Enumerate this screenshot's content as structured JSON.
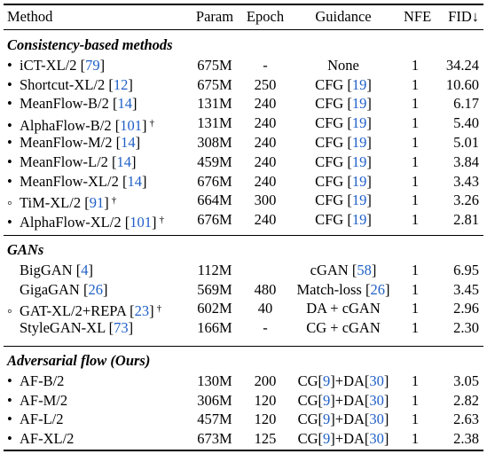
{
  "header": {
    "method": "Method",
    "param": "Param",
    "epoch": "Epoch",
    "guidance": "Guidance",
    "nfe": "NFE",
    "fid": "FID↓"
  },
  "sections": [
    {
      "title": "Consistency-based methods",
      "rows": [
        {
          "marker": "•",
          "name": "iCT-XL/2",
          "ref": "79",
          "dagger": "",
          "param": "675M",
          "epoch": "-",
          "g_pre": "None",
          "g_ref": "",
          "g_mid": "",
          "g_ref2": "",
          "g_post": "",
          "nfe": "1",
          "fid": "34.24"
        },
        {
          "marker": "•",
          "name": "Shortcut-XL/2",
          "ref": "12",
          "dagger": "",
          "param": "675M",
          "epoch": "250",
          "g_pre": "CFG ",
          "g_ref": "19",
          "g_mid": "",
          "g_ref2": "",
          "g_post": "",
          "nfe": "1",
          "fid": "10.60"
        },
        {
          "marker": "•",
          "name": "MeanFlow-B/2",
          "ref": "14",
          "dagger": "",
          "param": "131M",
          "epoch": "240",
          "g_pre": "CFG ",
          "g_ref": "19",
          "g_mid": "",
          "g_ref2": "",
          "g_post": "",
          "nfe": "1",
          "fid": "6.17"
        },
        {
          "marker": "•",
          "name": "AlphaFlow-B/2",
          "ref": "101",
          "dagger": "†",
          "param": "131M",
          "epoch": "240",
          "g_pre": "CFG ",
          "g_ref": "19",
          "g_mid": "",
          "g_ref2": "",
          "g_post": "",
          "nfe": "1",
          "fid": "5.40"
        },
        {
          "marker": "•",
          "name": "MeanFlow-M/2",
          "ref": "14",
          "dagger": "",
          "param": "308M",
          "epoch": "240",
          "g_pre": "CFG ",
          "g_ref": "19",
          "g_mid": "",
          "g_ref2": "",
          "g_post": "",
          "nfe": "1",
          "fid": "5.01"
        },
        {
          "marker": "•",
          "name": "MeanFlow-L/2",
          "ref": "14",
          "dagger": "",
          "param": "459M",
          "epoch": "240",
          "g_pre": "CFG ",
          "g_ref": "19",
          "g_mid": "",
          "g_ref2": "",
          "g_post": "",
          "nfe": "1",
          "fid": "3.84"
        },
        {
          "marker": "•",
          "name": "MeanFlow-XL/2",
          "ref": "14",
          "dagger": "",
          "param": "676M",
          "epoch": "240",
          "g_pre": "CFG ",
          "g_ref": "19",
          "g_mid": "",
          "g_ref2": "",
          "g_post": "",
          "nfe": "1",
          "fid": "3.43"
        },
        {
          "marker": "◦",
          "name": "TiM-XL/2",
          "ref": "91",
          "dagger": "†",
          "param": "664M",
          "epoch": "300",
          "g_pre": "CFG ",
          "g_ref": "19",
          "g_mid": "",
          "g_ref2": "",
          "g_post": "",
          "nfe": "1",
          "fid": "3.26"
        },
        {
          "marker": "•",
          "name": "AlphaFlow-XL/2",
          "ref": "101",
          "dagger": "†",
          "param": "676M",
          "epoch": "240",
          "g_pre": "CFG ",
          "g_ref": "19",
          "g_mid": "",
          "g_ref2": "",
          "g_post": "",
          "nfe": "1",
          "fid": "2.81"
        }
      ]
    },
    {
      "title": "GANs",
      "rows": [
        {
          "marker": "",
          "name": "BigGAN",
          "ref": "4",
          "dagger": "",
          "param": "112M",
          "epoch": "",
          "g_pre": "cGAN ",
          "g_ref": "58",
          "g_mid": "",
          "g_ref2": "",
          "g_post": "",
          "nfe": "1",
          "fid": "6.95"
        },
        {
          "marker": "",
          "name": "GigaGAN",
          "ref": "26",
          "dagger": "",
          "param": "569M",
          "epoch": "480",
          "g_pre": "Match-loss ",
          "g_ref": "26",
          "g_mid": "",
          "g_ref2": "",
          "g_post": "",
          "nfe": "1",
          "fid": "3.45"
        },
        {
          "marker": "◦",
          "name": "GAT-XL/2+REPA",
          "ref": "23",
          "dagger": "†",
          "param": "602M",
          "epoch": "40",
          "g_pre": "DA + cGAN",
          "g_ref": "",
          "g_mid": "",
          "g_ref2": "",
          "g_post": "",
          "nfe": "1",
          "fid": "2.96"
        },
        {
          "marker": "",
          "name": "StyleGAN-XL",
          "ref": "73",
          "dagger": "",
          "param": "166M",
          "epoch": "-",
          "g_pre": "CG + cGAN",
          "g_ref": "",
          "g_mid": "",
          "g_ref2": "",
          "g_post": "",
          "nfe": "1",
          "fid": "2.30"
        }
      ]
    },
    {
      "title": "Adversarial flow (Ours)",
      "rows": [
        {
          "marker": "•",
          "name": "AF-B/2",
          "ref": "",
          "dagger": "",
          "param": "130M",
          "epoch": "200",
          "g_pre": "CG[",
          "g_ref": "9",
          "g_mid": "]+DA[",
          "g_ref2": "30",
          "g_post": "]",
          "nfe": "1",
          "fid": "3.05"
        },
        {
          "marker": "•",
          "name": "AF-M/2",
          "ref": "",
          "dagger": "",
          "param": "306M",
          "epoch": "120",
          "g_pre": "CG[",
          "g_ref": "9",
          "g_mid": "]+DA[",
          "g_ref2": "30",
          "g_post": "]",
          "nfe": "1",
          "fid": "2.82"
        },
        {
          "marker": "•",
          "name": "AF-L/2",
          "ref": "",
          "dagger": "",
          "param": "457M",
          "epoch": "120",
          "g_pre": "CG[",
          "g_ref": "9",
          "g_mid": "]+DA[",
          "g_ref2": "30",
          "g_post": "]",
          "nfe": "1",
          "fid": "2.63"
        },
        {
          "marker": "•",
          "name": "AF-XL/2",
          "ref": "",
          "dagger": "",
          "param": "673M",
          "epoch": "125",
          "g_pre": "CG[",
          "g_ref": "9",
          "g_mid": "]+DA[",
          "g_ref2": "30",
          "g_post": "]",
          "nfe": "1",
          "fid": "2.38"
        }
      ]
    }
  ],
  "colors": {
    "ref_link": "#1f5fc8",
    "text": "#000000"
  }
}
